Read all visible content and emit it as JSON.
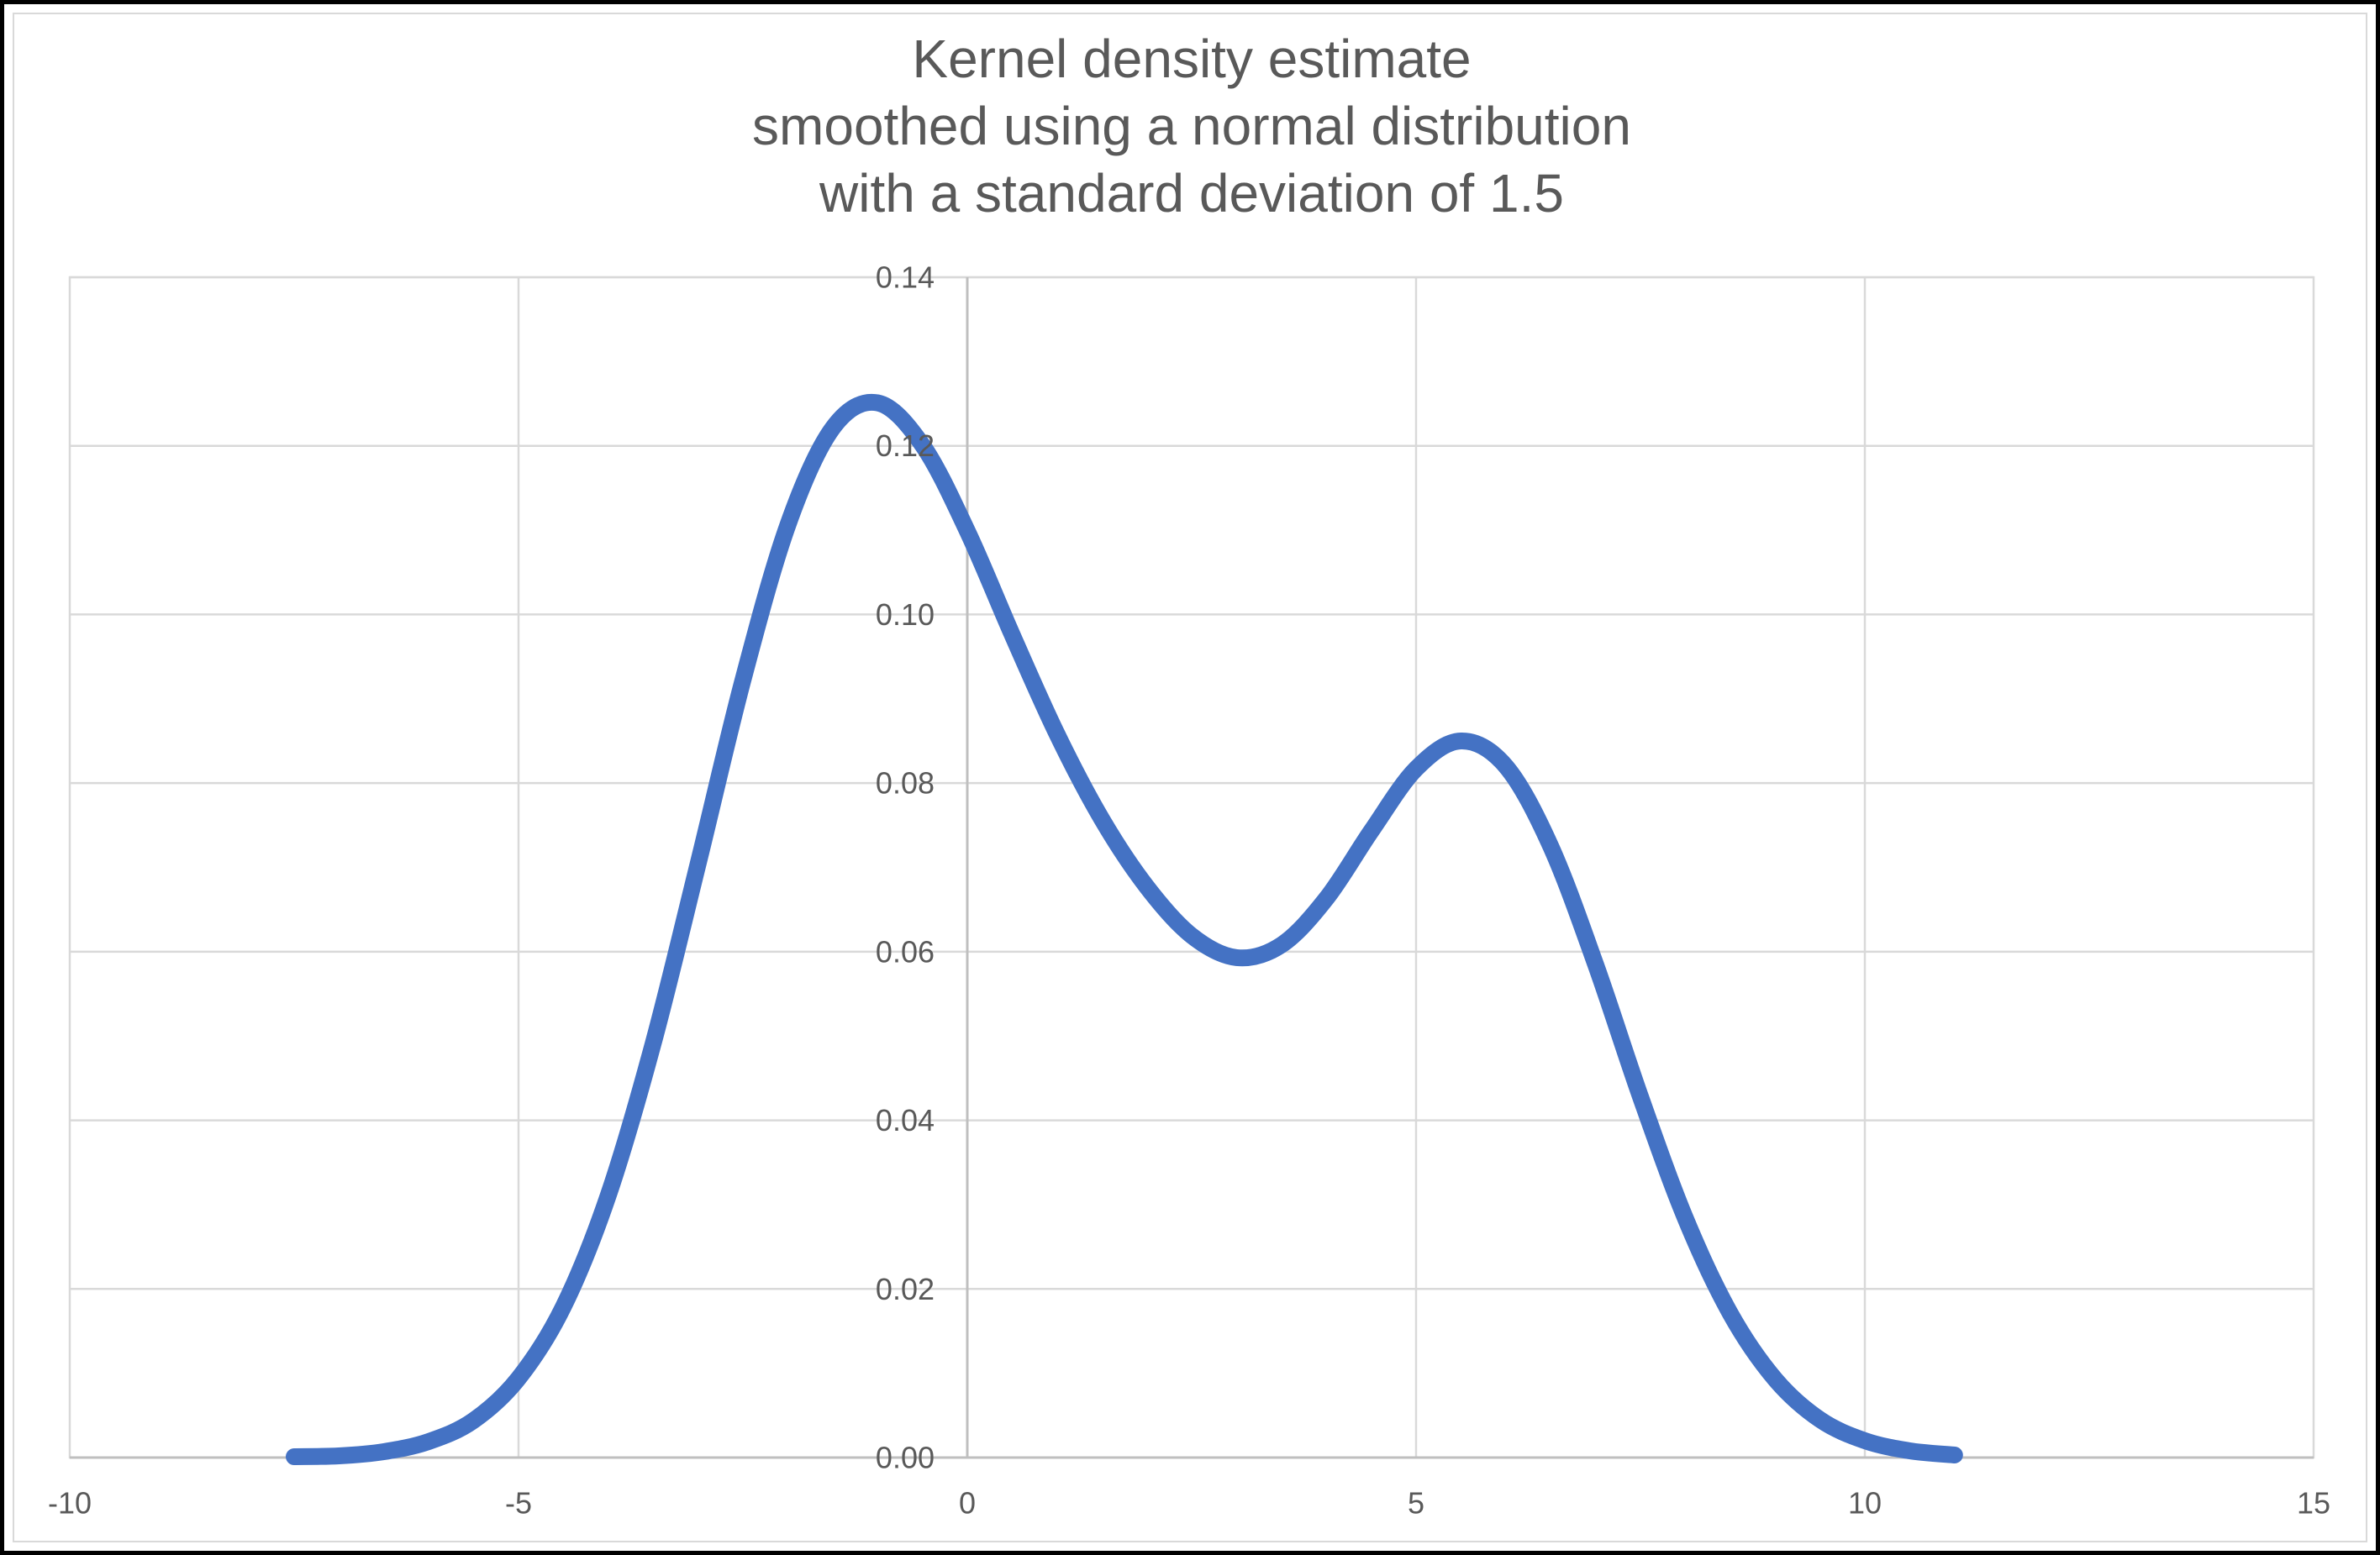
{
  "window": {
    "background": "#FFFFFF",
    "frame_color": "#000000"
  },
  "title": {
    "lines": [
      "Kernel density estimate",
      "smoothed using a normal distribution",
      "with a standard deviation of 1.5"
    ],
    "color": "#595959"
  },
  "chart_data": {
    "type": "line",
    "title": "Kernel density estimate smoothed using a normal distribution with a standard deviation of 1.5",
    "xlabel": "",
    "ylabel": "",
    "xlim": [
      -10,
      15
    ],
    "ylim": [
      0,
      0.14
    ],
    "x_ticks": [
      -10,
      -5,
      0,
      5,
      10,
      15
    ],
    "x_tick_labels": [
      "-10",
      "-5",
      "0",
      "5",
      "10",
      "15"
    ],
    "y_ticks": [
      0,
      0.02,
      0.04,
      0.06,
      0.08,
      0.1,
      0.12,
      0.14
    ],
    "y_tick_labels": [
      "0.00",
      "0.02",
      "0.04",
      "0.06",
      "0.08",
      "0.10",
      "0.12",
      "0.14"
    ],
    "grid": true,
    "legend": "none",
    "gridline_color": "#D9D9D9",
    "axis_color": "#BFBFBF",
    "tick_label_color": "#595959",
    "series": [
      {
        "name": "Kernel density estimate",
        "color": "#4472C4",
        "stroke_width": 20,
        "x": [
          -7.5,
          -7.0,
          -6.5,
          -6.0,
          -5.5,
          -5.0,
          -4.5,
          -4.0,
          -3.5,
          -3.0,
          -2.5,
          -2.0,
          -1.5,
          -1.0,
          -0.5,
          0.0,
          0.5,
          1.0,
          1.5,
          2.0,
          2.5,
          3.0,
          3.5,
          4.0,
          4.5,
          5.0,
          5.5,
          6.0,
          6.5,
          7.0,
          7.5,
          8.0,
          8.5,
          9.0,
          9.5,
          10.0,
          10.5,
          11.0
        ],
        "y": [
          0.0001,
          0.0002,
          0.0007,
          0.0019,
          0.0044,
          0.0094,
          0.0179,
          0.0311,
          0.0491,
          0.0704,
          0.0922,
          0.1106,
          0.1221,
          0.1251,
          0.1201,
          0.1099,
          0.0976,
          0.0858,
          0.0757,
          0.0677,
          0.0619,
          0.0593,
          0.0608,
          0.0663,
          0.0743,
          0.0817,
          0.085,
          0.082,
          0.0725,
          0.0585,
          0.0428,
          0.0284,
          0.0171,
          0.0093,
          0.0045,
          0.002,
          0.0008,
          0.0003
        ]
      }
    ]
  }
}
